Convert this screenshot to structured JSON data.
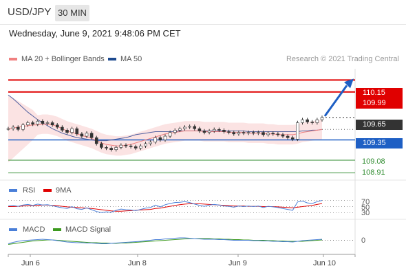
{
  "header": {
    "symbol": "USD/JPY",
    "timeframe": "30 MIN",
    "datetime": "Wednesday, June 9, 2021 9:48:06 PM CET"
  },
  "legend": {
    "ma20_bb": "MA 20 + Bollinger Bands",
    "ma50": "MA 50",
    "credit": "Research © 2021 Trading Central",
    "rsi": "RSI",
    "ma9": "9MA",
    "macd": "MACD",
    "macd_signal": "MACD Signal"
  },
  "colors": {
    "resistance": "#e00000",
    "support": "#1e5fc4",
    "last": "#333333",
    "green_level": "#2e8b2e",
    "bb_fill": "#fbe0e0",
    "ma20": "#f08080",
    "ma50": "#5060a0",
    "candle": "#333333",
    "arrow": "#1e5fc4",
    "rsi": "#4a7fd8",
    "ma9": "#e00000",
    "macd": "#4a7fd8",
    "macd_signal": "#3c9a1e"
  },
  "chart_data": [
    {
      "type": "line",
      "panel": "price",
      "x_ticks": [
        "Jun 6",
        "Jun 8",
        "Jun 9",
        "Jun 10"
      ],
      "ylim": [
        108.85,
        110.3
      ],
      "levels": [
        {
          "label": "110.15",
          "value": 110.15,
          "style": "resistance"
        },
        {
          "label": "109.99",
          "value": 109.99,
          "style": "resistance"
        },
        {
          "label": "109.65",
          "value": 109.65,
          "style": "last"
        },
        {
          "label": "109.35",
          "value": 109.35,
          "style": "support"
        },
        {
          "label": "109.08",
          "value": 109.08,
          "style": "green_level"
        },
        {
          "label": "108.91",
          "value": 108.91,
          "style": "green_level"
        }
      ],
      "close": [
        109.5,
        109.52,
        109.49,
        109.55,
        109.58,
        109.56,
        109.6,
        109.57,
        109.58,
        109.55,
        109.52,
        109.48,
        109.45,
        109.5,
        109.43,
        109.4,
        109.44,
        109.38,
        109.3,
        109.25,
        109.24,
        109.22,
        109.25,
        109.28,
        109.27,
        109.26,
        109.24,
        109.27,
        109.3,
        109.32,
        109.38,
        109.35,
        109.4,
        109.45,
        109.48,
        109.5,
        109.52,
        109.53,
        109.5,
        109.47,
        109.45,
        109.47,
        109.49,
        109.48,
        109.46,
        109.45,
        109.43,
        109.45,
        109.44,
        109.45,
        109.44,
        109.45,
        109.42,
        109.44,
        109.43,
        109.42,
        109.4,
        109.38,
        109.36,
        109.58,
        109.62,
        109.59,
        109.58,
        109.62,
        109.65
      ],
      "ma20": [
        109.5,
        109.51,
        109.52,
        109.53,
        109.54,
        109.55,
        109.55,
        109.56,
        109.56,
        109.55,
        109.53,
        109.5,
        109.47,
        109.45,
        109.43,
        109.41,
        109.39,
        109.37,
        109.34,
        109.31,
        109.29,
        109.28,
        109.27,
        109.27,
        109.28,
        109.29,
        109.31,
        109.33,
        109.35,
        109.37,
        109.39,
        109.41,
        109.43,
        109.44,
        109.45,
        109.46,
        109.47,
        109.47,
        109.47,
        109.47,
        109.46,
        109.46,
        109.46,
        109.46,
        109.46,
        109.45,
        109.45,
        109.45,
        109.45,
        109.44,
        109.44,
        109.44,
        109.44,
        109.43,
        109.43,
        109.42,
        109.42,
        109.42,
        109.42,
        109.43,
        109.45,
        109.46,
        109.47,
        109.48,
        109.49
      ],
      "ma50": [
        109.95,
        109.9,
        109.84,
        109.78,
        109.72,
        109.67,
        109.62,
        109.58,
        109.54,
        109.5,
        109.47,
        109.44,
        109.42,
        109.4,
        109.38,
        109.37,
        109.36,
        109.35,
        109.34,
        109.34,
        109.34,
        109.35,
        109.36,
        109.37,
        109.38,
        109.4,
        109.42,
        109.43,
        109.44,
        109.45,
        109.46,
        109.46,
        109.46,
        109.46,
        109.46,
        109.47,
        109.47,
        109.47,
        109.47,
        109.47,
        109.47,
        109.47,
        109.47,
        109.47,
        109.47,
        109.47,
        109.47,
        109.47,
        109.47,
        109.46,
        109.46,
        109.46,
        109.46,
        109.46,
        109.46,
        109.46,
        109.46,
        109.46,
        109.46,
        109.46,
        109.47,
        109.47,
        109.48,
        109.48,
        109.49
      ]
    },
    {
      "type": "line",
      "panel": "rsi",
      "ylim": [
        20,
        80
      ],
      "tick_labels": [
        "70",
        "50",
        "30"
      ],
      "rsi": [
        52,
        54,
        51,
        55,
        57,
        54,
        58,
        55,
        56,
        53,
        49,
        46,
        44,
        50,
        43,
        41,
        46,
        40,
        34,
        31,
        33,
        32,
        38,
        42,
        40,
        39,
        37,
        41,
        45,
        47,
        55,
        49,
        56,
        60,
        63,
        64,
        66,
        63,
        58,
        54,
        51,
        55,
        57,
        55,
        52,
        51,
        48,
        52,
        50,
        52,
        50,
        52,
        47,
        51,
        49,
        47,
        44,
        41,
        38,
        65,
        68,
        62,
        60,
        66,
        70
      ],
      "ma9": [
        50,
        50,
        51,
        52,
        53,
        53,
        54,
        55,
        55,
        54,
        53,
        51,
        49,
        48,
        47,
        46,
        45,
        44,
        42,
        40,
        38,
        36,
        35,
        35,
        36,
        37,
        38,
        39,
        40,
        41,
        44,
        45,
        48,
        51,
        54,
        56,
        58,
        59,
        59,
        59,
        58,
        57,
        56,
        55,
        54,
        53,
        52,
        52,
        52,
        51,
        51,
        51,
        50,
        50,
        50,
        49,
        48,
        47,
        46,
        48,
        50,
        52,
        54,
        57,
        60
      ]
    },
    {
      "type": "line",
      "panel": "macd",
      "tick_labels": [
        "0"
      ],
      "ylim": [
        -0.25,
        0.25
      ],
      "macd": [
        -0.1,
        -0.06,
        -0.03,
        -0.01,
        0.0,
        0.01,
        0.02,
        0.03,
        0.02,
        0.01,
        -0.01,
        -0.03,
        -0.05,
        -0.06,
        -0.07,
        -0.07,
        -0.08,
        -0.08,
        -0.09,
        -0.1,
        -0.1,
        -0.09,
        -0.08,
        -0.07,
        -0.06,
        -0.05,
        -0.04,
        -0.03,
        -0.01,
        0.0,
        0.02,
        0.02,
        0.04,
        0.05,
        0.06,
        0.07,
        0.07,
        0.06,
        0.05,
        0.04,
        0.03,
        0.03,
        0.03,
        0.02,
        0.02,
        0.01,
        0.0,
        0.0,
        0.0,
        0.0,
        -0.01,
        -0.01,
        -0.02,
        -0.02,
        -0.03,
        -0.03,
        -0.04,
        -0.04,
        -0.05,
        -0.03,
        -0.01,
        0.0,
        0.01,
        0.02,
        0.03
      ],
      "signal": [
        -0.12,
        -0.1,
        -0.08,
        -0.06,
        -0.04,
        -0.02,
        -0.01,
        0.0,
        0.01,
        0.01,
        0.0,
        -0.01,
        -0.02,
        -0.03,
        -0.04,
        -0.05,
        -0.06,
        -0.07,
        -0.07,
        -0.08,
        -0.08,
        -0.09,
        -0.09,
        -0.08,
        -0.08,
        -0.07,
        -0.06,
        -0.05,
        -0.04,
        -0.03,
        -0.02,
        -0.01,
        0.0,
        0.01,
        0.02,
        0.03,
        0.04,
        0.05,
        0.05,
        0.05,
        0.05,
        0.05,
        0.04,
        0.04,
        0.03,
        0.03,
        0.02,
        0.02,
        0.01,
        0.01,
        0.0,
        0.0,
        0.0,
        -0.01,
        -0.01,
        -0.02,
        -0.02,
        -0.03,
        -0.03,
        -0.03,
        -0.03,
        -0.02,
        -0.01,
        0.0,
        0.01
      ]
    }
  ]
}
